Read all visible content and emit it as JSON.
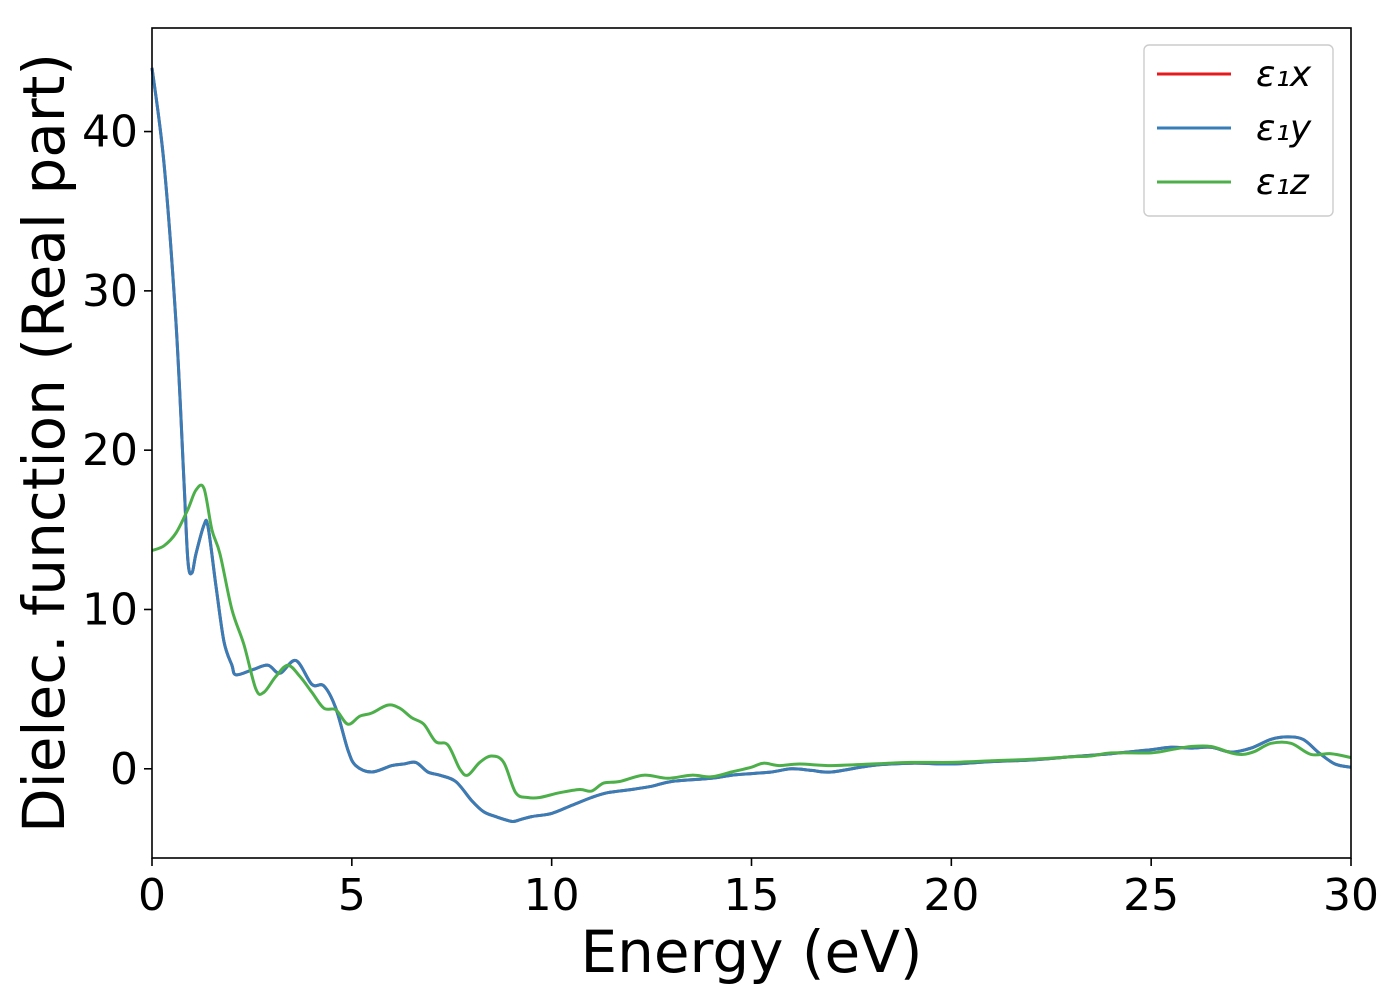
{
  "chart_data": {
    "type": "line",
    "title": "",
    "xlabel": "Energy (eV)",
    "ylabel": "Dielec. function (Real part)",
    "xlim": [
      0,
      30
    ],
    "ylim": [
      -5.6,
      46.5
    ],
    "xticks": [
      0,
      5,
      10,
      15,
      20,
      25,
      30
    ],
    "yticks": [
      0,
      10,
      20,
      30,
      40
    ],
    "grid": false,
    "legend_position": "top-right",
    "series": [
      {
        "name": "ε₁x",
        "color": "#e41a1c",
        "x": [
          0,
          0.3,
          0.6,
          0.8,
          0.9,
          1.0,
          1.1,
          1.3,
          1.4,
          1.6,
          1.8,
          2.0,
          2.1,
          2.5,
          2.9,
          3.2,
          3.6,
          4.0,
          4.3,
          4.6,
          4.9,
          5.1,
          5.5,
          6.0,
          6.3,
          6.6,
          6.9,
          7.2,
          7.6,
          8.0,
          8.3,
          8.6,
          9.0,
          9.2,
          9.5,
          10.0,
          10.5,
          11.0,
          11.4,
          12.0,
          12.5,
          13.0,
          14.0,
          14.5,
          15.0,
          15.5,
          16.0,
          16.5,
          17.0,
          18.0,
          19.0,
          20.0,
          21.0,
          22.0,
          23.0,
          24.0,
          25.0,
          25.5,
          26.0,
          26.5,
          27.0,
          27.5,
          28.0,
          28.4,
          28.8,
          29.2,
          29.6,
          30.0
        ],
        "y": [
          44.0,
          38.0,
          28.0,
          18.0,
          13.0,
          12.3,
          13.5,
          15.3,
          15.2,
          11.5,
          8.0,
          6.5,
          5.9,
          6.2,
          6.5,
          6.0,
          6.8,
          5.3,
          5.2,
          3.8,
          1.2,
          0.2,
          -0.2,
          0.2,
          0.3,
          0.4,
          -0.2,
          -0.4,
          -0.8,
          -2.0,
          -2.7,
          -3.0,
          -3.3,
          -3.2,
          -3.0,
          -2.8,
          -2.3,
          -1.8,
          -1.5,
          -1.3,
          -1.1,
          -0.8,
          -0.6,
          -0.4,
          -0.3,
          -0.2,
          0.0,
          -0.1,
          -0.2,
          0.2,
          0.35,
          0.3,
          0.45,
          0.55,
          0.75,
          0.95,
          1.2,
          1.35,
          1.3,
          1.35,
          1.05,
          1.3,
          1.85,
          2.0,
          1.85,
          1.0,
          0.3,
          0.1
        ]
      },
      {
        "name": "ε₁y",
        "color": "#377eb8",
        "x": [
          0,
          0.3,
          0.6,
          0.8,
          0.9,
          1.0,
          1.1,
          1.3,
          1.4,
          1.6,
          1.8,
          2.0,
          2.1,
          2.5,
          2.9,
          3.2,
          3.6,
          4.0,
          4.3,
          4.6,
          4.9,
          5.1,
          5.5,
          6.0,
          6.3,
          6.6,
          6.9,
          7.2,
          7.6,
          8.0,
          8.3,
          8.6,
          9.0,
          9.2,
          9.5,
          10.0,
          10.5,
          11.0,
          11.4,
          12.0,
          12.5,
          13.0,
          14.0,
          14.5,
          15.0,
          15.5,
          16.0,
          16.5,
          17.0,
          18.0,
          19.0,
          20.0,
          21.0,
          22.0,
          23.0,
          24.0,
          25.0,
          25.5,
          26.0,
          26.5,
          27.0,
          27.5,
          28.0,
          28.4,
          28.8,
          29.2,
          29.6,
          30.0
        ],
        "y": [
          44.0,
          38.0,
          28.0,
          18.0,
          13.0,
          12.3,
          13.5,
          15.3,
          15.2,
          11.5,
          8.0,
          6.5,
          5.9,
          6.2,
          6.5,
          6.0,
          6.8,
          5.3,
          5.2,
          3.8,
          1.2,
          0.2,
          -0.2,
          0.2,
          0.3,
          0.4,
          -0.2,
          -0.4,
          -0.8,
          -2.0,
          -2.7,
          -3.0,
          -3.3,
          -3.2,
          -3.0,
          -2.8,
          -2.3,
          -1.8,
          -1.5,
          -1.3,
          -1.1,
          -0.8,
          -0.6,
          -0.4,
          -0.3,
          -0.2,
          0.0,
          -0.1,
          -0.2,
          0.2,
          0.35,
          0.3,
          0.45,
          0.55,
          0.75,
          0.95,
          1.2,
          1.35,
          1.3,
          1.35,
          1.05,
          1.3,
          1.85,
          2.0,
          1.85,
          1.0,
          0.3,
          0.1
        ]
      },
      {
        "name": "ε₁z",
        "color": "#4daf4a",
        "x": [
          0,
          0.3,
          0.6,
          0.9,
          1.1,
          1.3,
          1.5,
          1.7,
          2.0,
          2.3,
          2.6,
          2.8,
          3.1,
          3.4,
          3.7,
          4.0,
          4.3,
          4.6,
          4.9,
          5.2,
          5.5,
          5.9,
          6.2,
          6.5,
          6.8,
          7.1,
          7.4,
          7.7,
          7.9,
          8.2,
          8.5,
          8.8,
          9.1,
          9.4,
          9.7,
          10.2,
          10.7,
          11.0,
          11.3,
          11.7,
          12.3,
          12.9,
          13.5,
          14.0,
          14.5,
          15.0,
          15.3,
          15.7,
          16.2,
          17.0,
          18.0,
          19.0,
          20.0,
          21.0,
          22.0,
          23.0,
          23.5,
          24.0,
          25.0,
          25.5,
          26.0,
          26.5,
          27.0,
          27.3,
          27.6,
          28.0,
          28.5,
          29.0,
          29.5,
          30.0
        ],
        "y": [
          13.7,
          14.0,
          14.8,
          16.3,
          17.5,
          17.6,
          15.0,
          13.5,
          10.0,
          7.8,
          5.0,
          4.8,
          5.8,
          6.5,
          5.8,
          4.8,
          3.8,
          3.7,
          2.8,
          3.3,
          3.5,
          4.0,
          3.8,
          3.2,
          2.8,
          1.7,
          1.5,
          0.0,
          -0.4,
          0.4,
          0.8,
          0.4,
          -1.5,
          -1.8,
          -1.8,
          -1.5,
          -1.3,
          -1.4,
          -0.9,
          -0.8,
          -0.4,
          -0.6,
          -0.4,
          -0.5,
          -0.2,
          0.1,
          0.35,
          0.2,
          0.3,
          0.2,
          0.3,
          0.4,
          0.4,
          0.5,
          0.6,
          0.75,
          0.8,
          1.0,
          1.0,
          1.2,
          1.4,
          1.4,
          1.0,
          0.9,
          1.1,
          1.6,
          1.6,
          0.9,
          0.95,
          0.7
        ]
      }
    ]
  }
}
